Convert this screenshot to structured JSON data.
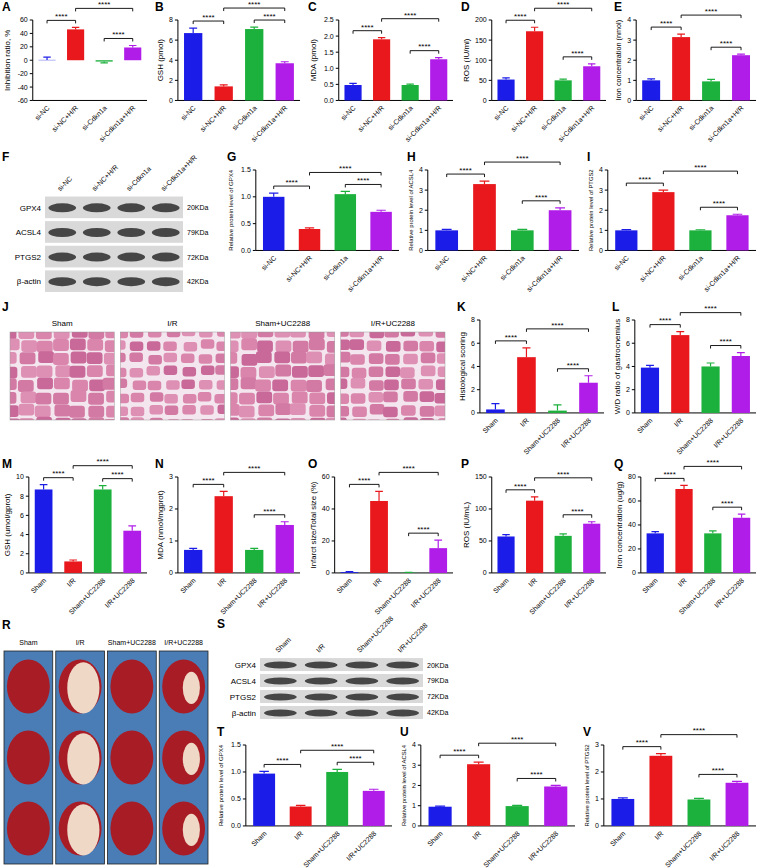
{
  "chart_data": [
    {
      "panel": "A",
      "type": "bar",
      "y_label": "Inhibition ratio, %",
      "categories": [
        "si-NC",
        "si-NC+H/R",
        "si-Cdkn1a",
        "si-Cdkn1a+H/R"
      ],
      "values": [
        0.5,
        46,
        -2,
        19
      ],
      "errors": [
        4,
        3,
        2,
        3
      ],
      "colors": [
        "#1c1ce8",
        "#e8181c",
        "#1cb03c",
        "#b01ce8"
      ],
      "ylim": [
        -60,
        60
      ],
      "yticks": [
        -60,
        -40,
        -20,
        0,
        20,
        40,
        60
      ],
      "comparisons": [
        {
          "pair": [
            0,
            1
          ],
          "label": "****"
        },
        {
          "pair": [
            1,
            3
          ],
          "label": "****"
        },
        {
          "pair": [
            2,
            3
          ],
          "label": "****"
        }
      ]
    },
    {
      "panel": "B",
      "type": "bar",
      "y_label": "GSH (pmol)",
      "categories": [
        "si-NC",
        "si-NC+H/R",
        "si-Cdkn1a",
        "si-Cdkn1a+H/R"
      ],
      "values": [
        6.7,
        1.4,
        7.1,
        3.7
      ],
      "errors": [
        0.5,
        0.15,
        0.2,
        0.15
      ],
      "colors": [
        "#1c1ce8",
        "#e8181c",
        "#1cb03c",
        "#b01ce8"
      ],
      "ylim": [
        0,
        8
      ],
      "yticks": [
        0,
        2,
        4,
        6,
        8
      ],
      "comparisons": [
        {
          "pair": [
            0,
            1
          ],
          "label": "****"
        },
        {
          "pair": [
            1,
            3
          ],
          "label": "****"
        },
        {
          "pair": [
            2,
            3
          ],
          "label": "****"
        }
      ]
    },
    {
      "panel": "C",
      "type": "bar",
      "y_label": "MDA (pmol)",
      "categories": [
        "si-NC",
        "si-NC+H/R",
        "si-Cdkn1a",
        "si-Cdkn1a+H/R"
      ],
      "values": [
        0.48,
        1.9,
        0.48,
        1.28
      ],
      "errors": [
        0.05,
        0.05,
        0.03,
        0.05
      ],
      "colors": [
        "#1c1ce8",
        "#e8181c",
        "#1cb03c",
        "#b01ce8"
      ],
      "ylim": [
        0,
        2.5
      ],
      "yticks": [
        {
          "value": 0,
          "label": "0.0"
        },
        0.5,
        {
          "value": 1,
          "label": "1.0"
        },
        1.5,
        {
          "value": 2,
          "label": "2.0"
        },
        2.5
      ],
      "comparisons": [
        {
          "pair": [
            0,
            1
          ],
          "label": "****"
        },
        {
          "pair": [
            1,
            3
          ],
          "label": "****"
        },
        {
          "pair": [
            2,
            3
          ],
          "label": "****"
        }
      ]
    },
    {
      "panel": "D",
      "type": "bar",
      "y_label": "ROS (IU/ml)",
      "categories": [
        "si-NC",
        "si-NC+H/R",
        "si-Cdkn1a",
        "si-Cdkn1a+H/R"
      ],
      "values": [
        52,
        172,
        50,
        85
      ],
      "errors": [
        4,
        10,
        3,
        6
      ],
      "colors": [
        "#1c1ce8",
        "#e8181c",
        "#1cb03c",
        "#b01ce8"
      ],
      "ylim": [
        0,
        200
      ],
      "yticks": [
        0,
        50,
        100,
        150,
        200
      ],
      "comparisons": [
        {
          "pair": [
            0,
            1
          ],
          "label": "****"
        },
        {
          "pair": [
            1,
            3
          ],
          "label": "****"
        },
        {
          "pair": [
            2,
            3
          ],
          "label": "****"
        }
      ]
    },
    {
      "panel": "E",
      "type": "bar",
      "y_label": "Iron concentration (nmol)",
      "categories": [
        "si-NC",
        "si-NC+H/R",
        "si-Cdkn1a",
        "si-Cdkn1a+H/R"
      ],
      "values": [
        1.0,
        3.15,
        0.95,
        2.25
      ],
      "errors": [
        0.07,
        0.15,
        0.1,
        0.05
      ],
      "colors": [
        "#1c1ce8",
        "#e8181c",
        "#1cb03c",
        "#b01ce8"
      ],
      "ylim": [
        0,
        4
      ],
      "yticks": [
        0,
        1,
        2,
        3,
        4
      ],
      "comparisons": [
        {
          "pair": [
            0,
            1
          ],
          "label": "****"
        },
        {
          "pair": [
            1,
            3
          ],
          "label": "****"
        },
        {
          "pair": [
            2,
            3
          ],
          "label": "****"
        }
      ]
    },
    {
      "panel": "G",
      "type": "bar",
      "y_label": "Relative protein level of GPX4",
      "categories": [
        "si-NC",
        "si-NC+H/R",
        "si-Cdkn1a",
        "si-Cdkn1a+H/R"
      ],
      "values": [
        1.0,
        0.4,
        1.05,
        0.72
      ],
      "errors": [
        0.07,
        0.02,
        0.05,
        0.03
      ],
      "colors": [
        "#1c1ce8",
        "#e8181c",
        "#1cb03c",
        "#b01ce8"
      ],
      "ylim": [
        0,
        1.5
      ],
      "yticks": [
        {
          "value": 0,
          "label": "0.0"
        },
        0.5,
        {
          "value": 1,
          "label": "1.0"
        },
        1.5
      ],
      "comparisons": [
        {
          "pair": [
            0,
            1
          ],
          "label": "****"
        },
        {
          "pair": [
            1,
            3
          ],
          "label": "****"
        },
        {
          "pair": [
            2,
            3
          ],
          "label": "****"
        }
      ]
    },
    {
      "panel": "H",
      "type": "bar",
      "y_label": "Relative protein level of ACSL4",
      "categories": [
        "si-NC",
        "si-NC+H/R",
        "si-Cdkn1a",
        "si-Cdkn1a+H/R"
      ],
      "values": [
        1.0,
        3.3,
        1.0,
        2.0
      ],
      "errors": [
        0.05,
        0.15,
        0.05,
        0.12
      ],
      "colors": [
        "#1c1ce8",
        "#e8181c",
        "#1cb03c",
        "#b01ce8"
      ],
      "ylim": [
        0,
        4
      ],
      "yticks": [
        0,
        1,
        2,
        3,
        4
      ],
      "comparisons": [
        {
          "pair": [
            0,
            1
          ],
          "label": "****"
        },
        {
          "pair": [
            1,
            3
          ],
          "label": "****"
        },
        {
          "pair": [
            2,
            3
          ],
          "label": "****"
        }
      ]
    },
    {
      "panel": "I",
      "type": "bar",
      "y_label": "Relative protein level of PTGS2",
      "categories": [
        "si-NC",
        "si-NC+H/R",
        "si-Cdkn1a",
        "si-Cdkn1a+H/R"
      ],
      "values": [
        1.0,
        2.9,
        1.0,
        1.75
      ],
      "errors": [
        0.04,
        0.1,
        0.03,
        0.05
      ],
      "colors": [
        "#1c1ce8",
        "#e8181c",
        "#1cb03c",
        "#b01ce8"
      ],
      "ylim": [
        0,
        4
      ],
      "yticks": [
        0,
        1,
        2,
        3,
        4
      ],
      "comparisons": [
        {
          "pair": [
            0,
            1
          ],
          "label": "****"
        },
        {
          "pair": [
            1,
            3
          ],
          "label": "****"
        },
        {
          "pair": [
            2,
            3
          ],
          "label": "****"
        }
      ]
    },
    {
      "panel": "K",
      "type": "bar",
      "y_label": "Histological scoring",
      "categories": [
        "Sham",
        "I/R",
        "Sham+UC2288",
        "I/R+UC2288"
      ],
      "values": [
        0.3,
        4.8,
        0.2,
        2.6
      ],
      "errors": [
        0.5,
        0.8,
        0.5,
        0.6
      ],
      "colors": [
        "#1c1ce8",
        "#e8181c",
        "#1cb03c",
        "#b01ce8"
      ],
      "ylim": [
        0,
        8
      ],
      "yticks": [
        0,
        2,
        4,
        6,
        8
      ],
      "comparisons": [
        {
          "pair": [
            0,
            1
          ],
          "label": "****"
        },
        {
          "pair": [
            1,
            3
          ],
          "label": "****"
        },
        {
          "pair": [
            2,
            3
          ],
          "label": "****"
        }
      ]
    },
    {
      "panel": "L",
      "type": "bar",
      "y_label": "W/D ratio of gastrocnemius",
      "categories": [
        "Sham",
        "I/R",
        "Sham+UC2288",
        "I/R+UC2288"
      ],
      "values": [
        3.9,
        6.7,
        4.0,
        4.9
      ],
      "errors": [
        0.2,
        0.3,
        0.3,
        0.3
      ],
      "colors": [
        "#1c1ce8",
        "#e8181c",
        "#1cb03c",
        "#b01ce8"
      ],
      "ylim": [
        0,
        8
      ],
      "yticks": [
        0,
        2,
        4,
        6,
        8
      ],
      "comparisons": [
        {
          "pair": [
            0,
            1
          ],
          "label": "****"
        },
        {
          "pair": [
            1,
            3
          ],
          "label": "****"
        },
        {
          "pair": [
            2,
            3
          ],
          "label": "****"
        }
      ]
    },
    {
      "panel": "M",
      "type": "bar",
      "y_label": "GSH (umol/gprot)",
      "categories": [
        "Sham",
        "I/R",
        "Sham+UC2288",
        "I/R+UC2288"
      ],
      "values": [
        8.7,
        1.2,
        8.7,
        4.4
      ],
      "errors": [
        0.5,
        0.15,
        0.4,
        0.5
      ],
      "colors": [
        "#1c1ce8",
        "#e8181c",
        "#1cb03c",
        "#b01ce8"
      ],
      "ylim": [
        0,
        10
      ],
      "yticks": [
        0,
        2,
        4,
        6,
        8,
        10
      ],
      "comparisons": [
        {
          "pair": [
            0,
            1
          ],
          "label": "****"
        },
        {
          "pair": [
            1,
            3
          ],
          "label": "****"
        },
        {
          "pair": [
            2,
            3
          ],
          "label": "****"
        }
      ]
    },
    {
      "panel": "N",
      "type": "bar",
      "y_label": "MDA (nmol/mgprot)",
      "categories": [
        "Sham",
        "I/R",
        "Sham+UC2288",
        "I/R+UC2288"
      ],
      "values": [
        0.72,
        2.4,
        0.72,
        1.5
      ],
      "errors": [
        0.05,
        0.15,
        0.05,
        0.1
      ],
      "colors": [
        "#1c1ce8",
        "#e8181c",
        "#1cb03c",
        "#b01ce8"
      ],
      "ylim": [
        0,
        3
      ],
      "yticks": [
        0,
        1,
        2,
        3
      ],
      "comparisons": [
        {
          "pair": [
            0,
            1
          ],
          "label": "****"
        },
        {
          "pair": [
            1,
            3
          ],
          "label": "****"
        },
        {
          "pair": [
            2,
            3
          ],
          "label": "****"
        }
      ]
    },
    {
      "panel": "O",
      "type": "bar",
      "y_label": "Infarct size/Total size (%)",
      "categories": [
        "Sham",
        "I/R",
        "Sham+UC2288",
        "I/R+UC2288"
      ],
      "values": [
        0.5,
        45,
        0.2,
        15.5
      ],
      "errors": [
        0.3,
        6,
        0.2,
        5
      ],
      "colors": [
        "#1c1ce8",
        "#e8181c",
        "#1cb03c",
        "#b01ce8"
      ],
      "ylim": [
        0,
        60
      ],
      "yticks": [
        0,
        20,
        40,
        60
      ],
      "comparisons": [
        {
          "pair": [
            0,
            1
          ],
          "label": "****"
        },
        {
          "pair": [
            1,
            3
          ],
          "label": "****"
        },
        {
          "pair": [
            2,
            3
          ],
          "label": "****"
        }
      ]
    },
    {
      "panel": "P",
      "type": "bar",
      "y_label": "ROS (IU/mL)",
      "categories": [
        "Sham",
        "I/R",
        "Sham+UC2288",
        "I/R+UC2288"
      ],
      "values": [
        57,
        113,
        58,
        77
      ],
      "errors": [
        3,
        6,
        3,
        3
      ],
      "colors": [
        "#1c1ce8",
        "#e8181c",
        "#1cb03c",
        "#b01ce8"
      ],
      "ylim": [
        0,
        150
      ],
      "yticks": [
        0,
        50,
        100,
        150
      ],
      "comparisons": [
        {
          "pair": [
            0,
            1
          ],
          "label": "****"
        },
        {
          "pair": [
            1,
            3
          ],
          "label": "****"
        },
        {
          "pair": [
            2,
            3
          ],
          "label": "****"
        }
      ]
    },
    {
      "panel": "Q",
      "type": "bar",
      "y_label": "Iron concentration (ug/g)",
      "categories": [
        "Sham",
        "I/R",
        "Sham+UC2288",
        "I/R+UC2288"
      ],
      "values": [
        33,
        70,
        33,
        46
      ],
      "errors": [
        1.5,
        3,
        2,
        3
      ],
      "colors": [
        "#1c1ce8",
        "#e8181c",
        "#1cb03c",
        "#b01ce8"
      ],
      "ylim": [
        0,
        80
      ],
      "yticks": [
        0,
        20,
        40,
        60,
        80
      ],
      "comparisons": [
        {
          "pair": [
            0,
            1
          ],
          "label": "****"
        },
        {
          "pair": [
            1,
            3
          ],
          "label": "****"
        },
        {
          "pair": [
            2,
            3
          ],
          "label": "****"
        }
      ]
    },
    {
      "panel": "T",
      "type": "bar",
      "y_label": "Relative protein level of GPX4",
      "categories": [
        "Sham",
        "I/R",
        "Sham+UC2288",
        "I/R+UC2288"
      ],
      "values": [
        0.97,
        0.36,
        1.0,
        0.65
      ],
      "errors": [
        0.04,
        0.02,
        0.05,
        0.03
      ],
      "colors": [
        "#1c1ce8",
        "#e8181c",
        "#1cb03c",
        "#b01ce8"
      ],
      "ylim": [
        0,
        1.5
      ],
      "yticks": [
        {
          "value": 0,
          "label": "0.0"
        },
        0.5,
        {
          "value": 1,
          "label": "1.0"
        },
        1.5
      ],
      "comparisons": [
        {
          "pair": [
            0,
            1
          ],
          "label": "****"
        },
        {
          "pair": [
            1,
            3
          ],
          "label": "****"
        },
        {
          "pair": [
            2,
            3
          ],
          "label": "****"
        }
      ]
    },
    {
      "panel": "U",
      "type": "bar",
      "y_label": "Relative protein level of ACSL4",
      "categories": [
        "Sham",
        "I/R",
        "Sham+UC2288",
        "I/R+UC2288"
      ],
      "values": [
        0.95,
        3.05,
        0.98,
        1.95
      ],
      "errors": [
        0.03,
        0.1,
        0.04,
        0.05
      ],
      "colors": [
        "#1c1ce8",
        "#e8181c",
        "#1cb03c",
        "#b01ce8"
      ],
      "ylim": [
        0,
        4
      ],
      "yticks": [
        0,
        1,
        2,
        3,
        4
      ],
      "comparisons": [
        {
          "pair": [
            0,
            1
          ],
          "label": "****"
        },
        {
          "pair": [
            1,
            3
          ],
          "label": "****"
        },
        {
          "pair": [
            2,
            3
          ],
          "label": "****"
        }
      ]
    },
    {
      "panel": "V",
      "type": "bar",
      "y_label": "Relative protein level of PTGS2",
      "categories": [
        "Sham",
        "I/R",
        "Sham+UC2288",
        "I/R+UC2288"
      ],
      "values": [
        1.0,
        2.6,
        0.98,
        1.6
      ],
      "errors": [
        0.04,
        0.08,
        0.04,
        0.05
      ],
      "colors": [
        "#1c1ce8",
        "#e8181c",
        "#1cb03c",
        "#b01ce8"
      ],
      "ylim": [
        0,
        3
      ],
      "yticks": [
        0,
        1,
        2,
        3
      ],
      "comparisons": [
        {
          "pair": [
            0,
            1
          ],
          "label": "****"
        },
        {
          "pair": [
            1,
            3
          ],
          "label": "****"
        },
        {
          "pair": [
            2,
            3
          ],
          "label": "****"
        }
      ]
    }
  ],
  "blots": [
    {
      "panel": "F",
      "lanes": [
        "si-NC",
        "si-NC+H/R",
        "si-Cdkn1a",
        "si-Cdkn1a+H/R"
      ],
      "proteins": [
        "GPX4",
        "ACSL4",
        "PTGS2",
        "β-actin"
      ],
      "sizes": [
        "20KDa",
        "79KDa",
        "72KDa",
        "42KDa"
      ]
    },
    {
      "panel": "S",
      "lanes": [
        "Sham",
        "I/R",
        "Sham+UC2288",
        "I/R+UC2288"
      ],
      "proteins": [
        "GPX4",
        "ACSL4",
        "PTGS2",
        "β-actin"
      ],
      "sizes": [
        "20KDa",
        "79KDa",
        "72KDa",
        "42KDa"
      ]
    }
  ],
  "images": [
    {
      "panel": "J",
      "labels": [
        "Sham",
        "I/R",
        "Sham+UC2288",
        "I/R+UC2288"
      ]
    },
    {
      "panel": "R",
      "labels": [
        "Sham",
        "I/R",
        "Sham+UC2288",
        "I/R+UC2288"
      ]
    }
  ]
}
